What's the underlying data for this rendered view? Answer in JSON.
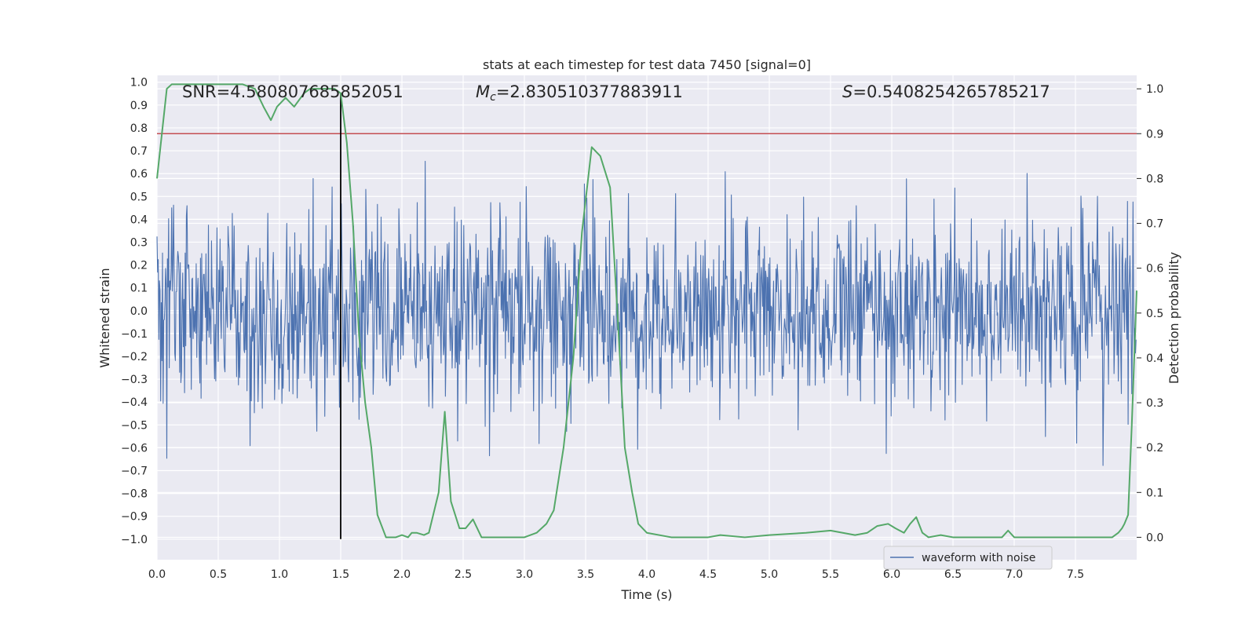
{
  "chart_data": {
    "type": "line",
    "title": "stats at each timestep for test data 7450 [signal=0]",
    "xlabel": "Time (s)",
    "ylabel": "Whitened strain",
    "ylabel_right": "Detection probability",
    "xlim": [
      0.0,
      8.0
    ],
    "ylim": [
      -1.09,
      1.03
    ],
    "ylim_right": [
      -0.05,
      1.03
    ],
    "x_ticks": [
      "0.0",
      "0.5",
      "1.0",
      "1.5",
      "2.0",
      "2.5",
      "3.0",
      "3.5",
      "4.0",
      "4.5",
      "5.0",
      "5.5",
      "6.0",
      "6.5",
      "7.0",
      "7.5"
    ],
    "y_ticks": [
      "1.0",
      "0.9",
      "0.8",
      "0.7",
      "0.6",
      "0.5",
      "0.4",
      "0.3",
      "0.2",
      "0.1",
      "0.0",
      "-0.1",
      "-0.2",
      "-0.3",
      "-0.4",
      "-0.5",
      "-0.6",
      "-0.7",
      "-0.8",
      "-0.9",
      "-1.0"
    ],
    "y_ticks_right": [
      "1.0",
      "0.9",
      "0.8",
      "0.7",
      "0.6",
      "0.5",
      "0.4",
      "0.3",
      "0.2",
      "0.1",
      "0.0"
    ],
    "annotations": {
      "snr": "SNR=4.580807685852051",
      "mc_symbol": "M",
      "mc_sub": "c",
      "mc_value": "=2.830510377883911",
      "s_symbol": "S",
      "s_value": "=0.5408254265785217"
    },
    "legend": {
      "label": "waveform with noise",
      "location": "lower-right"
    },
    "threshold": {
      "value": 0.9,
      "axis": "right",
      "color": "#c44e52"
    },
    "marker_time": 1.5,
    "marker_range": [
      -1.0,
      0.95
    ],
    "waveform": {
      "name": "waveform with noise",
      "color": "#4c72b0",
      "duration": 8.0,
      "samples": 1600,
      "noise_scale": 0.21
    },
    "probability": {
      "name": "Detection probability",
      "color": "#55a868",
      "t": [
        0.0,
        0.04,
        0.08,
        0.12,
        0.25,
        0.5,
        0.7,
        0.8,
        0.87,
        0.93,
        0.98,
        1.05,
        1.12,
        1.2,
        1.25,
        1.38,
        1.45,
        1.5,
        1.55,
        1.6,
        1.65,
        1.7,
        1.75,
        1.8,
        1.87,
        1.95,
        2.0,
        2.05,
        2.08,
        2.12,
        2.18,
        2.22,
        2.3,
        2.35,
        2.4,
        2.47,
        2.52,
        2.58,
        2.65,
        2.75,
        2.85,
        3.0,
        3.1,
        3.18,
        3.24,
        3.32,
        3.4,
        3.47,
        3.55,
        3.62,
        3.7,
        3.76,
        3.82,
        3.88,
        3.93,
        4.0,
        4.2,
        4.4,
        4.5,
        4.6,
        4.8,
        5.0,
        5.3,
        5.5,
        5.7,
        5.8,
        5.88,
        5.97,
        6.03,
        6.1,
        6.15,
        6.2,
        6.25,
        6.3,
        6.4,
        6.5,
        6.6,
        6.8,
        6.9,
        6.95,
        7.0,
        7.2,
        7.4,
        7.6,
        7.7,
        7.8,
        7.85,
        7.88,
        7.9,
        7.93,
        7.96,
        8.0
      ],
      "values": [
        0.8,
        0.9,
        1.0,
        1.01,
        1.01,
        1.01,
        1.01,
        1.0,
        0.96,
        0.93,
        0.96,
        0.98,
        0.96,
        0.99,
        1.0,
        1.0,
        1.0,
        0.99,
        0.88,
        0.7,
        0.45,
        0.3,
        0.2,
        0.05,
        0.0,
        0.0,
        0.005,
        0.0,
        0.01,
        0.01,
        0.005,
        0.01,
        0.1,
        0.28,
        0.08,
        0.02,
        0.02,
        0.04,
        0.0,
        0.0,
        0.0,
        0.0,
        0.01,
        0.03,
        0.06,
        0.2,
        0.4,
        0.68,
        0.87,
        0.85,
        0.78,
        0.5,
        0.2,
        0.1,
        0.03,
        0.01,
        0.0,
        0.0,
        0.0,
        0.005,
        0.0,
        0.005,
        0.01,
        0.015,
        0.005,
        0.01,
        0.025,
        0.03,
        0.02,
        0.01,
        0.03,
        0.045,
        0.01,
        0.0,
        0.005,
        0.0,
        0.0,
        0.0,
        0.0,
        0.015,
        0.0,
        0.0,
        0.0,
        0.0,
        0.0,
        0.0,
        0.01,
        0.02,
        0.03,
        0.05,
        0.25,
        0.55
      ]
    }
  }
}
